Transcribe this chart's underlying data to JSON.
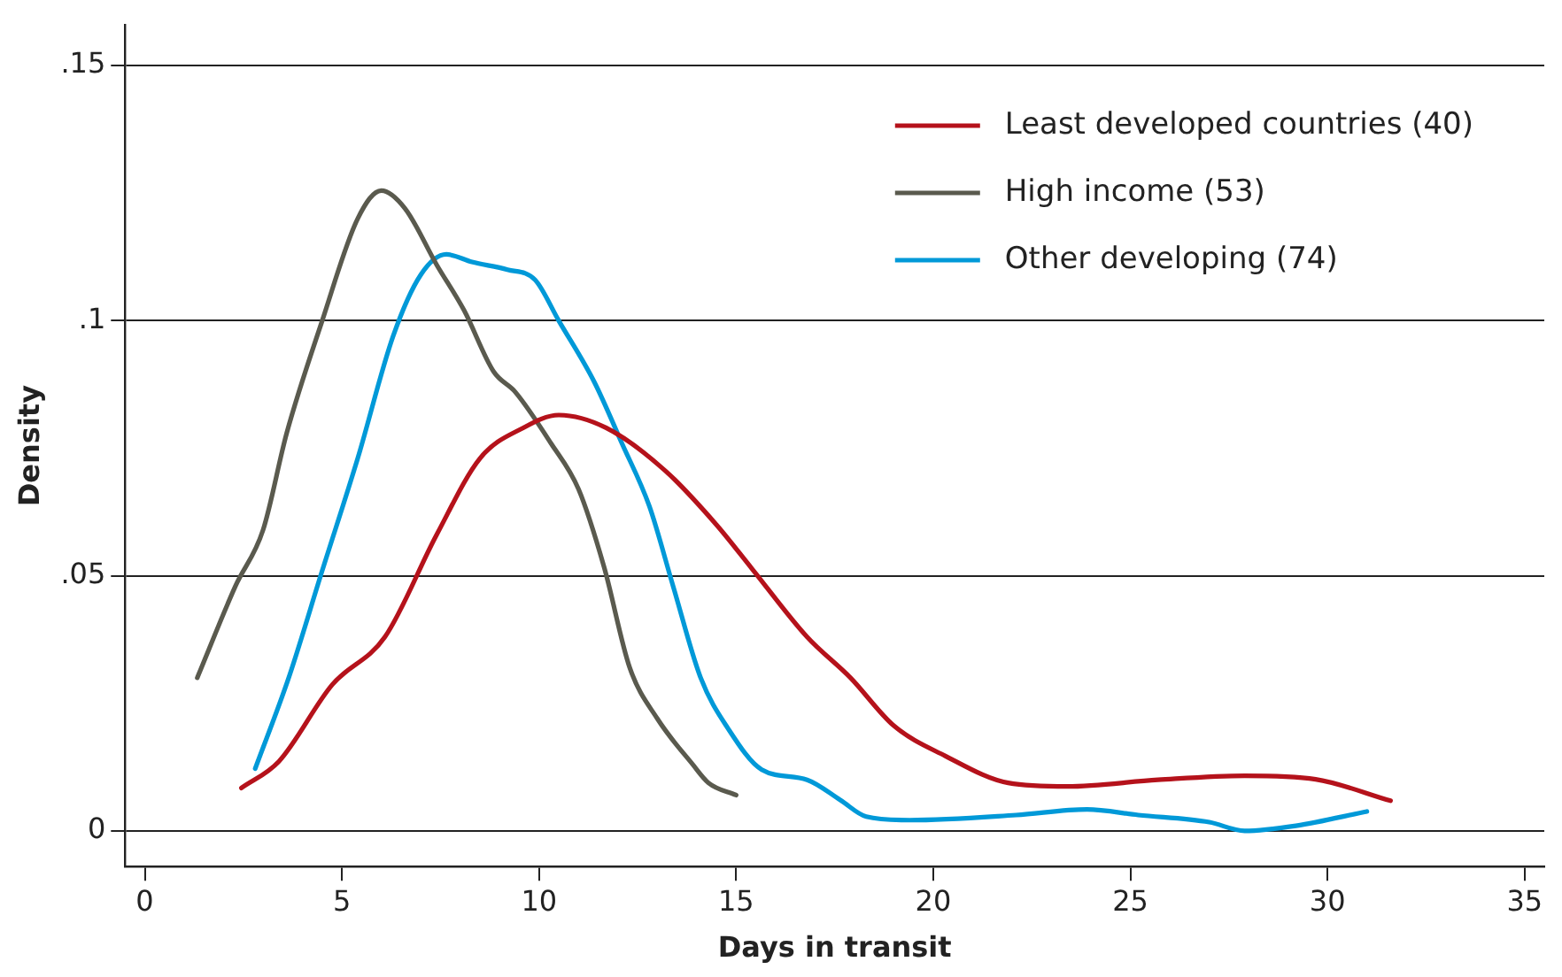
{
  "chart_data": {
    "type": "line",
    "xlabel": "Days in transit",
    "ylabel": "Density",
    "legend": "top right",
    "grid": "y",
    "marker": "none",
    "line_style": "solid",
    "xlim": [
      -0.5,
      35.5
    ],
    "xticks": [
      0,
      5,
      10,
      15,
      20,
      25,
      30,
      35
    ],
    "ylim": [
      -0.007,
      0.158
    ],
    "yticks": [
      {
        "value": 0,
        "label": "0"
      },
      {
        "value": 0.05,
        "label": ".05"
      },
      {
        "value": 0.1,
        "label": ".1"
      },
      {
        "value": 0.15,
        "label": ".15"
      }
    ],
    "series": [
      {
        "name": "Least developed countries (40)",
        "color": "#b5121b",
        "x": [
          2.45,
          3.4,
          4.76,
          6.09,
          7.4,
          8.5,
          9.6,
          10.5,
          11.7,
          13.2,
          14.5,
          15.4,
          16.8,
          17.9,
          19.0,
          20.3,
          21.9,
          23.4,
          25.7,
          27.9,
          29.7,
          31.6
        ],
        "values": [
          0.0084,
          0.0136,
          0.0287,
          0.038,
          0.058,
          0.073,
          0.079,
          0.0815,
          0.079,
          0.0706,
          0.06,
          0.0514,
          0.038,
          0.03,
          0.0206,
          0.0147,
          0.0094,
          0.0087,
          0.01,
          0.0108,
          0.0101,
          0.0059
        ]
      },
      {
        "name": "High income (53)",
        "color": "#5a5a4e",
        "x": [
          1.33,
          2.3,
          3.0,
          3.6,
          4.5,
          5.4,
          6.0,
          6.6,
          7.4,
          8.1,
          8.85,
          9.4,
          10.3,
          11.0,
          11.65,
          12.3,
          13.0,
          13.9,
          14.3,
          15.0
        ],
        "values": [
          0.03,
          0.048,
          0.059,
          0.078,
          0.1,
          0.12,
          0.1255,
          0.122,
          0.111,
          0.102,
          0.09,
          0.086,
          0.076,
          0.067,
          0.0517,
          0.032,
          0.022,
          0.013,
          0.0094,
          0.007
        ]
      },
      {
        "name": "Other developing (74)",
        "color": "#0099d8",
        "x": [
          2.8,
          3.65,
          4.5,
          5.4,
          6.3,
          7.0,
          7.65,
          8.3,
          9.2,
          9.9,
          10.5,
          11.4,
          12.1,
          12.8,
          13.4,
          14.1,
          14.8,
          15.65,
          16.8,
          17.65,
          18.3,
          19.4,
          22.1,
          23.9,
          25.2,
          27.0,
          27.9,
          29.2,
          31.0
        ],
        "values": [
          0.0122,
          0.03,
          0.051,
          0.073,
          0.097,
          0.109,
          0.113,
          0.1115,
          0.11,
          0.108,
          0.1,
          0.088,
          0.076,
          0.0636,
          0.048,
          0.03,
          0.02,
          0.012,
          0.01,
          0.006,
          0.0028,
          0.0021,
          0.0031,
          0.0042,
          0.0031,
          0.0017,
          0.0,
          0.001,
          0.0038
        ]
      }
    ]
  }
}
